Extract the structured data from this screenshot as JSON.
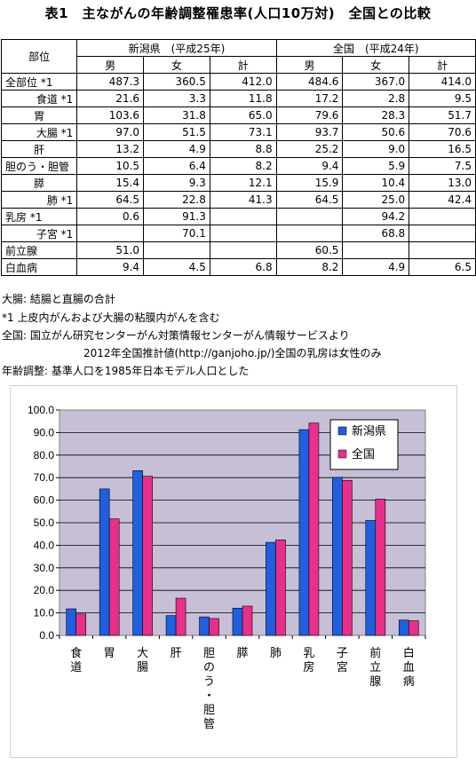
{
  "title": "表1　主ながんの年齢調整罹患率(人口10万対)　全国との比較",
  "table": {
    "col_header": "部位",
    "group1": "新潟県　(平成25年)",
    "group2": "全国　(平成24年)",
    "sub": [
      "男",
      "女",
      "計",
      "男",
      "女",
      "計"
    ],
    "rows": [
      {
        "label": "全部位 *1",
        "align": "lbl",
        "values": [
          "487.3",
          "360.5",
          "412.0",
          "484.6",
          "367.0",
          "414.0"
        ]
      },
      {
        "label": "食道 *1",
        "align": "rlbl",
        "values": [
          "21.6",
          "3.3",
          "11.8",
          "17.2",
          "2.8",
          "9.5"
        ]
      },
      {
        "label": "胃",
        "align": "ctr",
        "values": [
          "103.6",
          "31.8",
          "65.0",
          "79.6",
          "28.3",
          "51.7"
        ]
      },
      {
        "label": "大腸 *1",
        "align": "rlbl",
        "values": [
          "97.0",
          "51.5",
          "73.1",
          "93.7",
          "50.6",
          "70.6"
        ]
      },
      {
        "label": "肝",
        "align": "ctr",
        "values": [
          "13.2",
          "4.9",
          "8.8",
          "25.2",
          "9.0",
          "16.5"
        ]
      },
      {
        "label": "胆のう・胆管",
        "align": "lbl",
        "values": [
          "10.5",
          "6.4",
          "8.2",
          "9.4",
          "5.9",
          "7.5"
        ]
      },
      {
        "label": "膵",
        "align": "ctr",
        "values": [
          "15.4",
          "9.3",
          "12.1",
          "15.9",
          "10.4",
          "13.0"
        ]
      },
      {
        "label": "肺 *1",
        "align": "rlbl",
        "values": [
          "64.5",
          "22.8",
          "41.3",
          "64.5",
          "25.0",
          "42.4"
        ]
      },
      {
        "label": "乳房 *1",
        "align": "lbl",
        "values": [
          "0.6",
          "91.3",
          "",
          "",
          "94.2",
          ""
        ]
      },
      {
        "label": "子宮 *1",
        "align": "rlbl",
        "values": [
          "",
          "70.1",
          "",
          "",
          "68.8",
          ""
        ]
      },
      {
        "label": "前立腺",
        "align": "lbl",
        "values": [
          "51.0",
          "",
          "",
          "60.5",
          "",
          ""
        ]
      },
      {
        "label": "白血病",
        "align": "lbl",
        "values": [
          "9.4",
          "4.5",
          "6.8",
          "8.2",
          "4.9",
          "6.5"
        ]
      }
    ]
  },
  "notes": [
    "大腸: 結腸と直腸の合計",
    "*1 上皮内がんおよび大腸の粘膜内がんを含む",
    "全国: 国立がん研究センターがん対策情報センターがん情報サービスより",
    "2012年全国推計値(http://ganjoho.jp/)全国の乳房は女性のみ",
    "年齢調整: 基準人口を1985年日本モデル人口とした"
  ],
  "colors": {
    "niigata": "#1f5fe0",
    "national": "#e8308a",
    "plot_bg": "#c6bfd6"
  },
  "chart_data": {
    "type": "bar",
    "categories": [
      "食道",
      "胃",
      "大腸",
      "肝",
      "胆のう・胆管",
      "膵",
      "肺",
      "乳房",
      "子宮",
      "前立腺",
      "白血病"
    ],
    "series": [
      {
        "name": "新潟県",
        "values": [
          11.8,
          65.0,
          73.1,
          8.8,
          8.2,
          12.1,
          41.3,
          91.3,
          70.1,
          51.0,
          6.8
        ]
      },
      {
        "name": "全国",
        "values": [
          9.5,
          51.7,
          70.6,
          16.5,
          7.5,
          13.0,
          42.4,
          94.2,
          68.8,
          60.5,
          6.5
        ]
      }
    ],
    "ylim": [
      0,
      100
    ],
    "yticks": [
      "0.0",
      "10.0",
      "20.0",
      "30.0",
      "40.0",
      "50.0",
      "60.0",
      "70.0",
      "80.0",
      "90.0",
      "100.0"
    ],
    "grid": true,
    "legend_position": "top-right"
  }
}
